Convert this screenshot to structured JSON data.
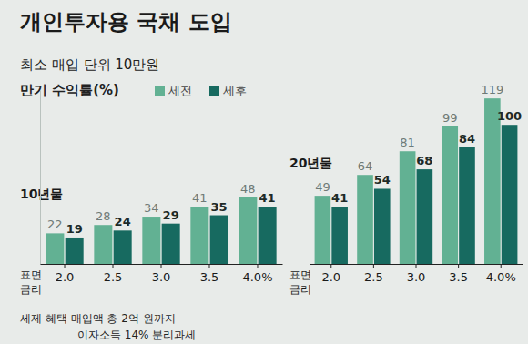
{
  "title": "개인투자용 국채 도입",
  "subtitle": "최소 매입 단위 10만원",
  "legend_title": "만기 수익률(%)",
  "notes": [
    "세제 혜택 매입액 총 2억 원까지",
    "이자소득 14% 분리과세"
  ],
  "chart_data": [
    {
      "type": "bar",
      "title": "10년물",
      "x_label": "표면 금리",
      "categories": [
        "2.0",
        "2.5",
        "3.0",
        "3.5",
        "4.0%"
      ],
      "series": [
        {
          "name": "세전",
          "color": "#62b193",
          "values": [
            22,
            28,
            34,
            41,
            48
          ]
        },
        {
          "name": "세후",
          "color": "#176a60",
          "values": [
            19,
            24,
            29,
            35,
            41
          ]
        }
      ],
      "ylim": [
        0,
        125
      ],
      "tick_labels": "x",
      "data_labels": true,
      "grid": false
    },
    {
      "type": "bar",
      "title": "20년물",
      "x_label": "표면 금리",
      "categories": [
        "2.0",
        "2.5",
        "3.0",
        "3.5",
        "4.0%"
      ],
      "series": [
        {
          "color": "#62b193",
          "values": [
            49,
            64,
            81,
            99,
            119
          ]
        },
        {
          "color": "#176a60",
          "values": [
            41,
            54,
            68,
            84,
            100
          ]
        }
      ],
      "ylim": [
        0,
        125
      ],
      "tick_labels": "x",
      "data_labels": true,
      "grid": false
    }
  ]
}
